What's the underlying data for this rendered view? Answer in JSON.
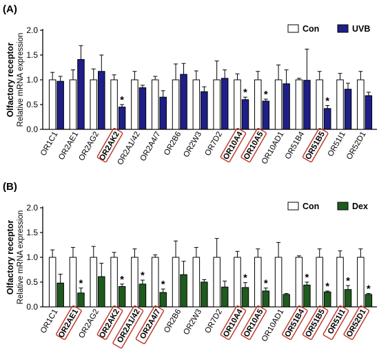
{
  "chart_data": [
    {
      "type": "bar",
      "panel_label": "(A)",
      "ylabel_main": "Olfactory receptor",
      "ylabel_sub": "Relative mRNA expression",
      "ylim": [
        0,
        2.0
      ],
      "yticks": [
        "0.0",
        "0.5",
        "1.0",
        "1.5",
        "2.0"
      ],
      "categories": [
        "OR1C1",
        "OR2AE1",
        "OR2AG2",
        "OR2AK2",
        "OR2A1/42",
        "OR2A4/7",
        "OR2B6",
        "OR2W3",
        "OR7D2",
        "OR10A4",
        "OR10A5",
        "OR10AD1",
        "OR51B4",
        "OR51B5",
        "OR51I1",
        "OR52D1"
      ],
      "highlighted": [
        "OR2AK2",
        "OR10A4",
        "OR10A5",
        "OR51B5"
      ],
      "legend_position": "top-right",
      "series": [
        {
          "name": "Con",
          "color": "#ffffff",
          "values": [
            1.0,
            1.0,
            1.0,
            1.0,
            1.0,
            1.0,
            1.0,
            1.0,
            1.0,
            1.0,
            1.0,
            1.0,
            1.0,
            1.0,
            1.0,
            1.0
          ],
          "errors": [
            0.15,
            0.2,
            0.22,
            0.1,
            0.17,
            0.07,
            0.32,
            0.18,
            0.38,
            0.12,
            0.17,
            0.3,
            0.03,
            0.17,
            0.13,
            0.17
          ]
        },
        {
          "name": "UVB",
          "color": "#1f1f8a",
          "values": [
            0.97,
            1.41,
            1.17,
            0.45,
            0.84,
            0.65,
            1.11,
            0.76,
            1.03,
            0.6,
            0.57,
            0.92,
            0.99,
            0.42,
            0.81,
            0.68
          ],
          "errors": [
            0.1,
            0.28,
            0.33,
            0.05,
            0.05,
            0.13,
            0.22,
            0.1,
            0.17,
            0.05,
            0.04,
            0.28,
            0.63,
            0.06,
            0.12,
            0.07
          ]
        }
      ],
      "significant": [
        "OR2AK2",
        "OR10A4",
        "OR10A5",
        "OR51B5"
      ],
      "annotation_symbol": "*"
    },
    {
      "type": "bar",
      "panel_label": "(B)",
      "ylabel_main": "Olfactory receptor",
      "ylabel_sub": "Relative mRNA expression",
      "ylim": [
        0,
        2.0
      ],
      "yticks": [
        "0.0",
        "0.5",
        "1.0",
        "1.5",
        "2.0"
      ],
      "categories": [
        "OR1C1",
        "OR2AE1",
        "OR2AG2",
        "OR2AK2",
        "OR2A1/42",
        "OR2A4/7",
        "OR2B6",
        "OR2W3",
        "OR7D2",
        "OR10A4",
        "OR10A5",
        "OR10AD1",
        "OR51B4",
        "OR51B5",
        "OR51I1",
        "OR52D1"
      ],
      "highlighted": [
        "OR2AE1",
        "OR2AK2",
        "OR2A1/42",
        "OR2A4/7",
        "OR10A4",
        "OR10A5",
        "OR51B4",
        "OR51B5",
        "OR51I1",
        "OR52D1"
      ],
      "legend_position": "top-right",
      "series": [
        {
          "name": "Con",
          "color": "#ffffff",
          "values": [
            1.0,
            1.0,
            1.0,
            1.0,
            1.0,
            1.0,
            1.0,
            1.0,
            1.0,
            1.0,
            1.0,
            1.0,
            1.0,
            1.0,
            1.0,
            1.0
          ],
          "errors": [
            0.15,
            0.2,
            0.22,
            0.1,
            0.17,
            0.05,
            0.33,
            0.2,
            0.38,
            0.12,
            0.17,
            0.3,
            0.03,
            0.17,
            0.13,
            0.17
          ]
        },
        {
          "name": "Dex",
          "color": "#1e5c1e",
          "values": [
            0.48,
            0.28,
            0.61,
            0.41,
            0.46,
            0.29,
            0.65,
            0.5,
            0.4,
            0.39,
            0.32,
            0.25,
            0.44,
            0.3,
            0.35,
            0.25
          ],
          "errors": [
            0.18,
            0.1,
            0.27,
            0.05,
            0.08,
            0.07,
            0.27,
            0.05,
            0.12,
            0.1,
            0.06,
            0.02,
            0.06,
            0.02,
            0.08,
            0.02
          ]
        }
      ],
      "significant": [
        "OR2AE1",
        "OR2AK2",
        "OR2A1/42",
        "OR2A4/7",
        "OR10A4",
        "OR10A5",
        "OR51B4",
        "OR51B5",
        "OR51I1",
        "OR52D1"
      ],
      "annotation_symbol": "*"
    }
  ]
}
